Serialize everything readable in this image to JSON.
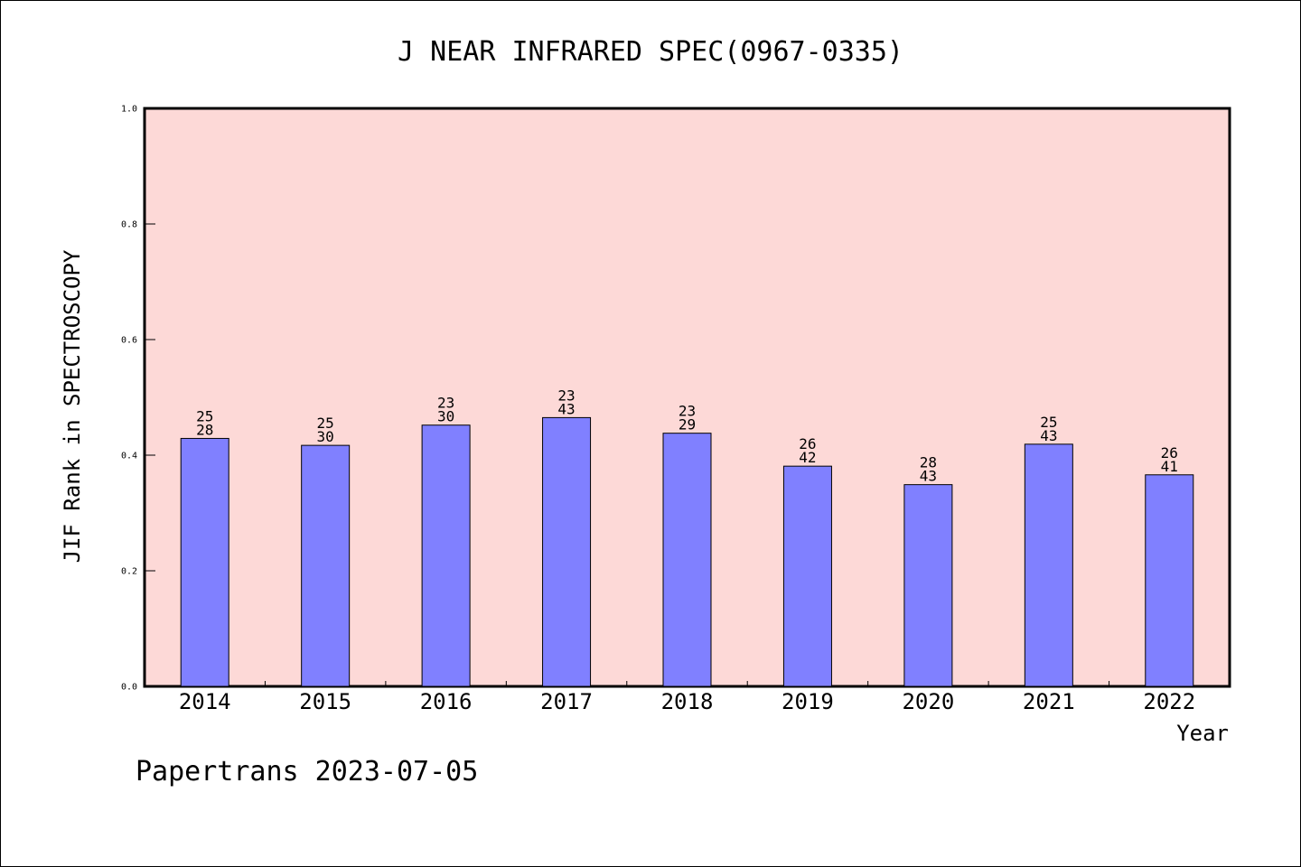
{
  "title": "J NEAR INFRARED SPEC(0967-0335)",
  "footer": "Papertrans 2023-07-05",
  "chart_data": {
    "type": "bar",
    "title": "J NEAR INFRARED SPEC(0967-0335)",
    "xlabel": "Year",
    "ylabel": "JIF Rank in SPECTROSCOPY",
    "ylim": [
      0,
      1.0
    ],
    "yticks": [
      "0.0",
      "0.2",
      "0.4",
      "0.6",
      "0.8",
      "1.0"
    ],
    "categories": [
      "2014",
      "2015",
      "2016",
      "2017",
      "2018",
      "2019",
      "2020",
      "2021",
      "2022"
    ],
    "values": [
      0.429,
      0.417,
      0.452,
      0.465,
      0.438,
      0.381,
      0.349,
      0.419,
      0.366
    ],
    "rank": [
      "25",
      "25",
      "23",
      "23",
      "23",
      "26",
      "28",
      "25",
      "26"
    ],
    "total": [
      "28",
      "30",
      "30",
      "43",
      "29",
      "42",
      "43",
      "43",
      "41"
    ],
    "grid": false,
    "colors": {
      "plot_background": "#fdd9d7",
      "bar_fill": "#8080ff",
      "bar_stroke": "#000000",
      "axis": "#000000"
    }
  }
}
